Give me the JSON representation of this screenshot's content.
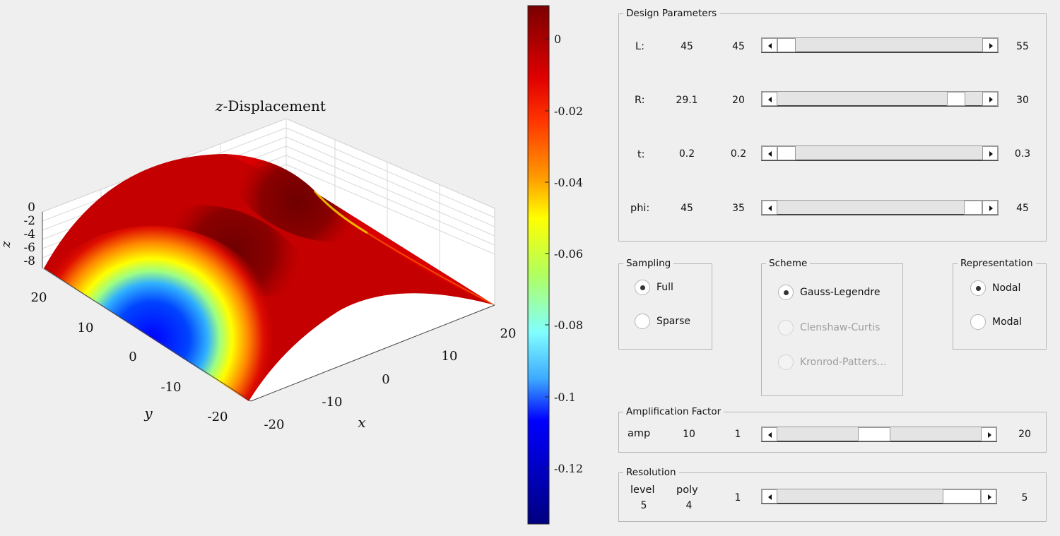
{
  "plot": {
    "title_var": "z",
    "title_rest": "-Displacement",
    "z_axis_label": "z",
    "x_axis_label": "x",
    "y_axis_label": "y",
    "z_ticks": [
      "0",
      "-2",
      "-4",
      "-6",
      "-8"
    ],
    "x_ticks": [
      "-20",
      "-10",
      "0",
      "10",
      "20"
    ],
    "y_ticks": [
      "20",
      "10",
      "0",
      "-10",
      "-20"
    ],
    "colorbar_ticks": [
      "0",
      "-0.02",
      "-0.04",
      "-0.06",
      "-0.08",
      "-0.1",
      "-0.12"
    ],
    "colormap": [
      "#7f0000",
      "#ff0000",
      "#ff8c00",
      "#ffff00",
      "#80ffff",
      "#0000ff",
      "#00008f"
    ]
  },
  "design_parameters": {
    "title": "Design Parameters",
    "rows": [
      {
        "label": "L:",
        "value": "45",
        "min": "45",
        "max": "55",
        "fraction": 0.0
      },
      {
        "label": "R:",
        "value": "29.1",
        "min": "20",
        "max": "30",
        "fraction": 0.91
      },
      {
        "label": "t:",
        "value": "0.2",
        "min": "0.2",
        "max": "0.3",
        "fraction": 0.0
      },
      {
        "label": "phi:",
        "value": "45",
        "min": "35",
        "max": "45",
        "fraction": 1.0
      }
    ]
  },
  "sampling": {
    "title": "Sampling",
    "options": [
      {
        "label": "Full",
        "selected": true
      },
      {
        "label": "Sparse",
        "selected": false
      }
    ]
  },
  "scheme": {
    "title": "Scheme",
    "options": [
      {
        "label": "Gauss-Legendre",
        "selected": true,
        "enabled": true
      },
      {
        "label": "Clenshaw-Curtis",
        "selected": false,
        "enabled": false
      },
      {
        "label": "Kronrod-Patters...",
        "selected": false,
        "enabled": false
      }
    ]
  },
  "representation": {
    "title": "Representation",
    "options": [
      {
        "label": "Nodal",
        "selected": true
      },
      {
        "label": "Modal",
        "selected": false
      }
    ]
  },
  "amplification": {
    "title": "Amplification Factor",
    "label": "amp",
    "value": "10",
    "min": "1",
    "max": "20",
    "fraction": 0.47
  },
  "resolution": {
    "title": "Resolution",
    "level_label": "level",
    "level_value": "5",
    "poly_label": "poly",
    "poly_value": "4",
    "min": "1",
    "max": "5",
    "fraction": 1.0
  }
}
